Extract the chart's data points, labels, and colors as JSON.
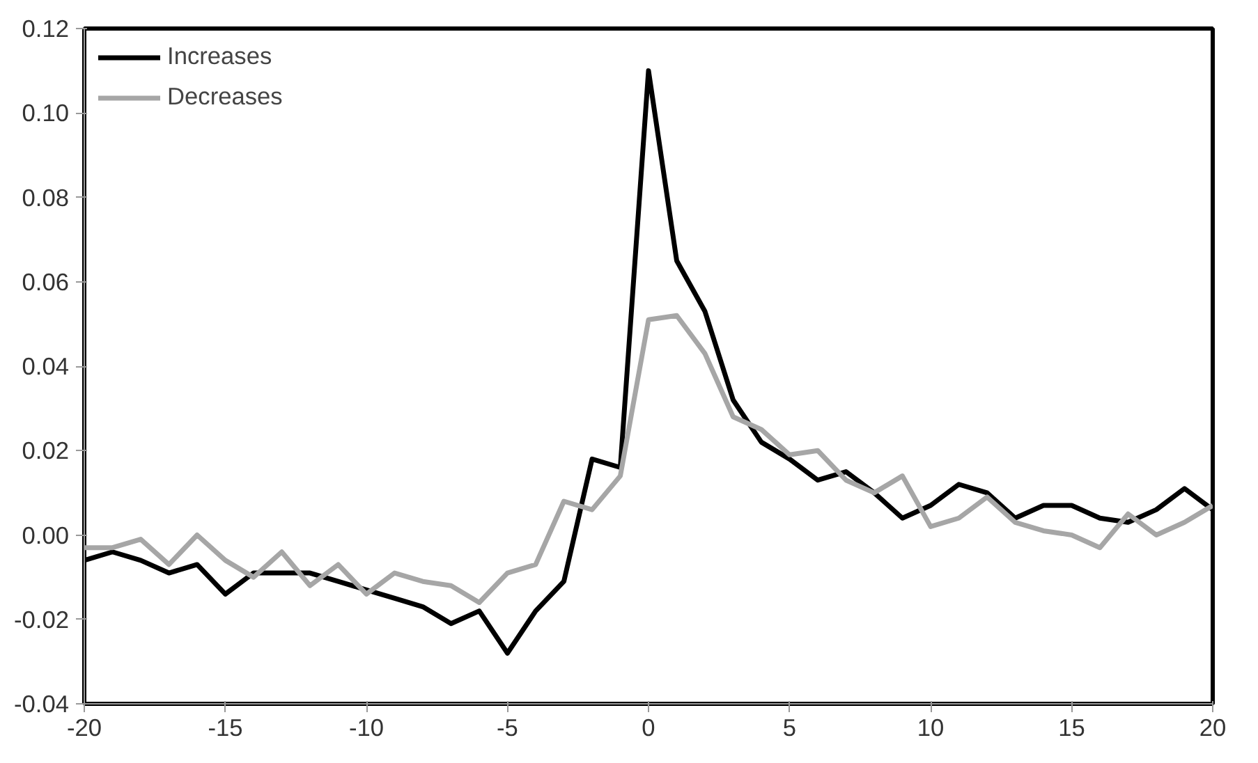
{
  "chart_data": {
    "type": "line",
    "x": [
      -20,
      -19,
      -18,
      -17,
      -16,
      -15,
      -14,
      -13,
      -12,
      -11,
      -10,
      -9,
      -8,
      -7,
      -6,
      -5,
      -4,
      -3,
      -2,
      -1,
      0,
      1,
      2,
      3,
      4,
      5,
      6,
      7,
      8,
      9,
      10,
      11,
      12,
      13,
      14,
      15,
      16,
      17,
      18,
      19,
      20
    ],
    "series": [
      {
        "name": "Increases",
        "color": "#000000",
        "values": [
          -0.006,
          -0.004,
          -0.006,
          -0.009,
          -0.007,
          -0.014,
          -0.009,
          -0.009,
          -0.009,
          -0.011,
          -0.013,
          -0.015,
          -0.017,
          -0.021,
          -0.018,
          -0.028,
          -0.018,
          -0.011,
          0.018,
          0.016,
          0.11,
          0.065,
          0.053,
          0.032,
          0.022,
          0.018,
          0.013,
          0.015,
          0.01,
          0.004,
          0.007,
          0.012,
          0.01,
          0.004,
          0.007,
          0.007,
          0.004,
          0.003,
          0.006,
          0.011,
          0.006
        ]
      },
      {
        "name": "Decreases",
        "color": "#a6a6a6",
        "values": [
          -0.003,
          -0.003,
          -0.001,
          -0.007,
          0.0,
          -0.006,
          -0.01,
          -0.004,
          -0.012,
          -0.007,
          -0.014,
          -0.009,
          -0.011,
          -0.012,
          -0.016,
          -0.009,
          -0.007,
          0.008,
          0.006,
          0.014,
          0.051,
          0.052,
          0.043,
          0.028,
          0.025,
          0.019,
          0.02,
          0.013,
          0.01,
          0.014,
          0.002,
          0.004,
          0.009,
          0.003,
          0.001,
          0.0,
          -0.003,
          0.005,
          0.0,
          0.003,
          0.007
        ]
      }
    ],
    "xlim": [
      -20,
      20
    ],
    "xticks": [
      -20,
      -15,
      -10,
      -5,
      0,
      5,
      10,
      15,
      20
    ],
    "ylim": [
      -0.04,
      0.12
    ],
    "yticks": [
      {
        "value": -0.04,
        "label": "-0.04"
      },
      {
        "value": -0.02,
        "label": "-0.02"
      },
      {
        "value": 0,
        "label": "0.00"
      },
      {
        "value": 0.02,
        "label": "0.02"
      },
      {
        "value": 0.04,
        "label": "0.04"
      },
      {
        "value": 0.06,
        "label": "0.06"
      },
      {
        "value": 0.08,
        "label": "0.08"
      },
      {
        "value": 0.1,
        "label": "0.10"
      },
      {
        "value": 0.12,
        "label": "0.12"
      }
    ],
    "grid": false,
    "legend": "top left",
    "marker": "none",
    "line_style": "solid"
  }
}
